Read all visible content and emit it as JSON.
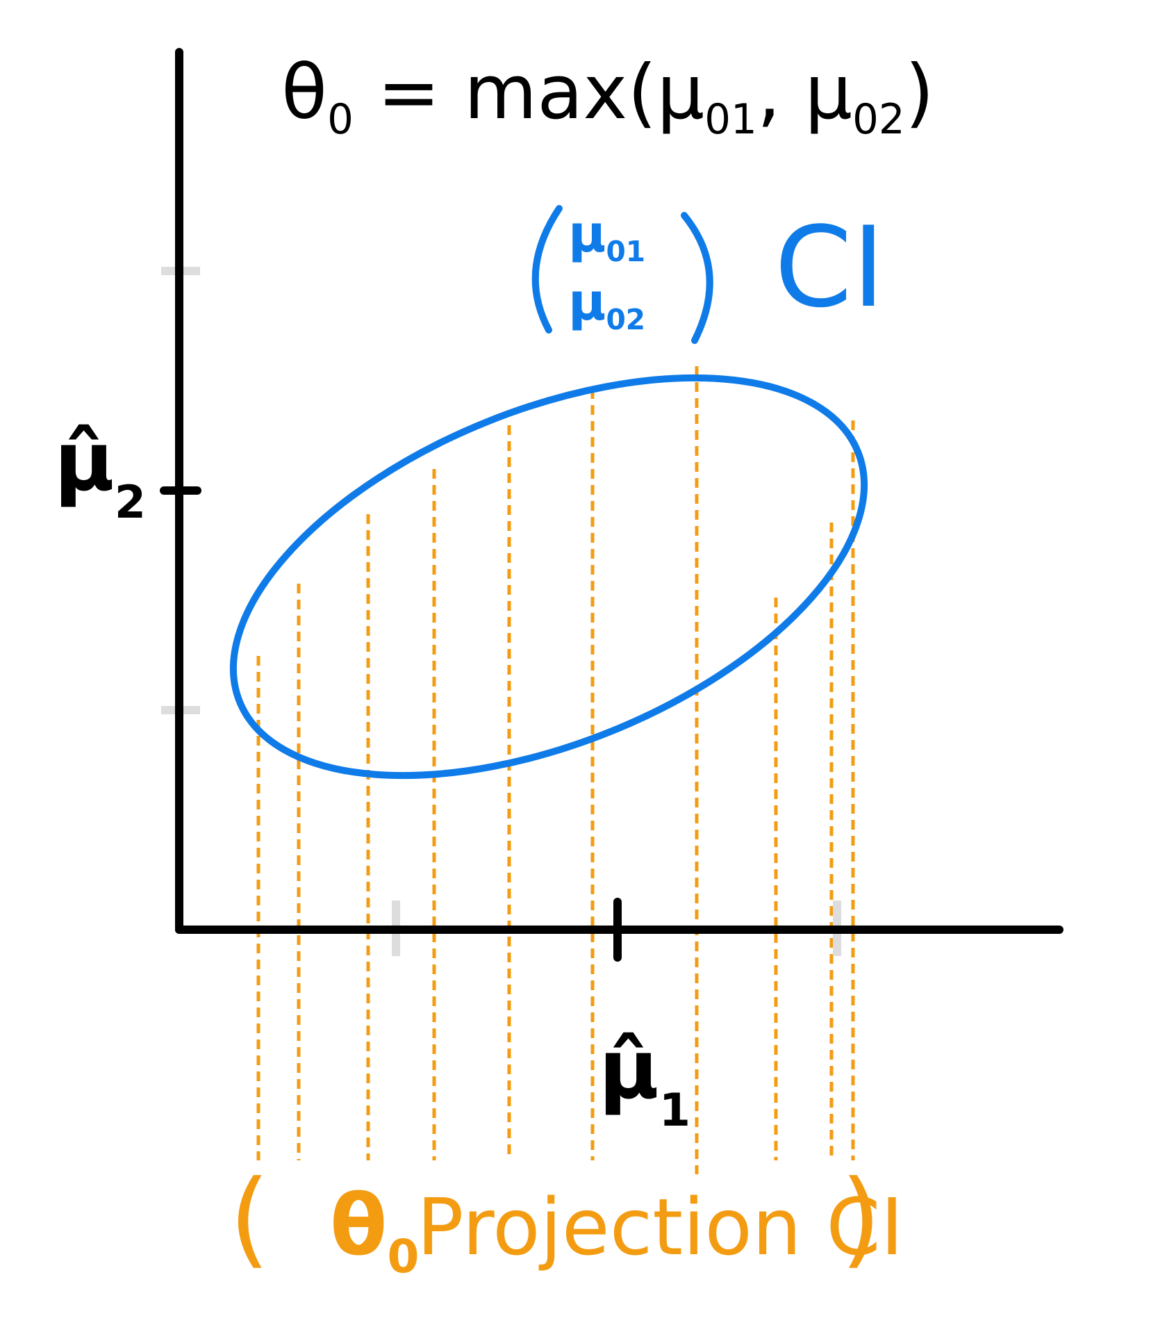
{
  "title": {
    "theta": "θ",
    "theta_sub": "0",
    "rest": " = max(μ",
    "sub1": "01",
    "comma": ", μ",
    "sub2": "02",
    "close": ")"
  },
  "axes": {
    "y_label": "μ̂",
    "y_sub": "2",
    "x_label": "μ̂",
    "x_sub": "1"
  },
  "ci_label": {
    "vector_top": "μ",
    "vector_top_sub": "01",
    "vector_bottom": "μ",
    "vector_bottom_sub": "02",
    "text": "CI"
  },
  "projection_label": {
    "open": "(",
    "theta": "θ",
    "theta_sub": "0",
    "text": "Projection CI",
    "close": ")"
  },
  "colors": {
    "axis": "#000000",
    "ellipse": "#0f7be8",
    "projection": "#f39c12",
    "faint_tick": "#dddddd"
  }
}
